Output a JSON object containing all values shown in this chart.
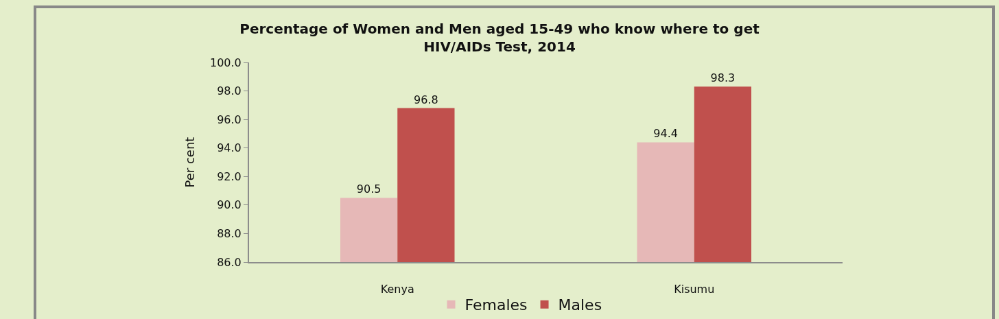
{
  "chart_data": {
    "type": "bar",
    "title": "Percentage of Women and Men aged 15-49 who know where to get\nHIV/AIDs Test, 2014",
    "ylabel": "Per cent",
    "categories": [
      "Kenya",
      "Kisumu"
    ],
    "series": [
      {
        "name": "Females",
        "color": "#e6b8b7",
        "values": [
          90.5,
          94.4
        ]
      },
      {
        "name": "Males",
        "color": "#c0504d",
        "values": [
          96.8,
          98.3
        ]
      }
    ],
    "ylim": [
      86,
      100
    ],
    "yticks": [
      {
        "value": 86,
        "label": "86.0"
      },
      {
        "value": 88,
        "label": "88.0"
      },
      {
        "value": 90,
        "label": "90.0"
      },
      {
        "value": 92,
        "label": "92.0"
      },
      {
        "value": 94,
        "label": "94.0"
      },
      {
        "value": 96,
        "label": "96.0"
      },
      {
        "value": 98,
        "label": "98.0"
      },
      {
        "value": 100,
        "label": "100.0"
      }
    ],
    "data_labels": true,
    "grid": false,
    "legend": "bottom"
  }
}
